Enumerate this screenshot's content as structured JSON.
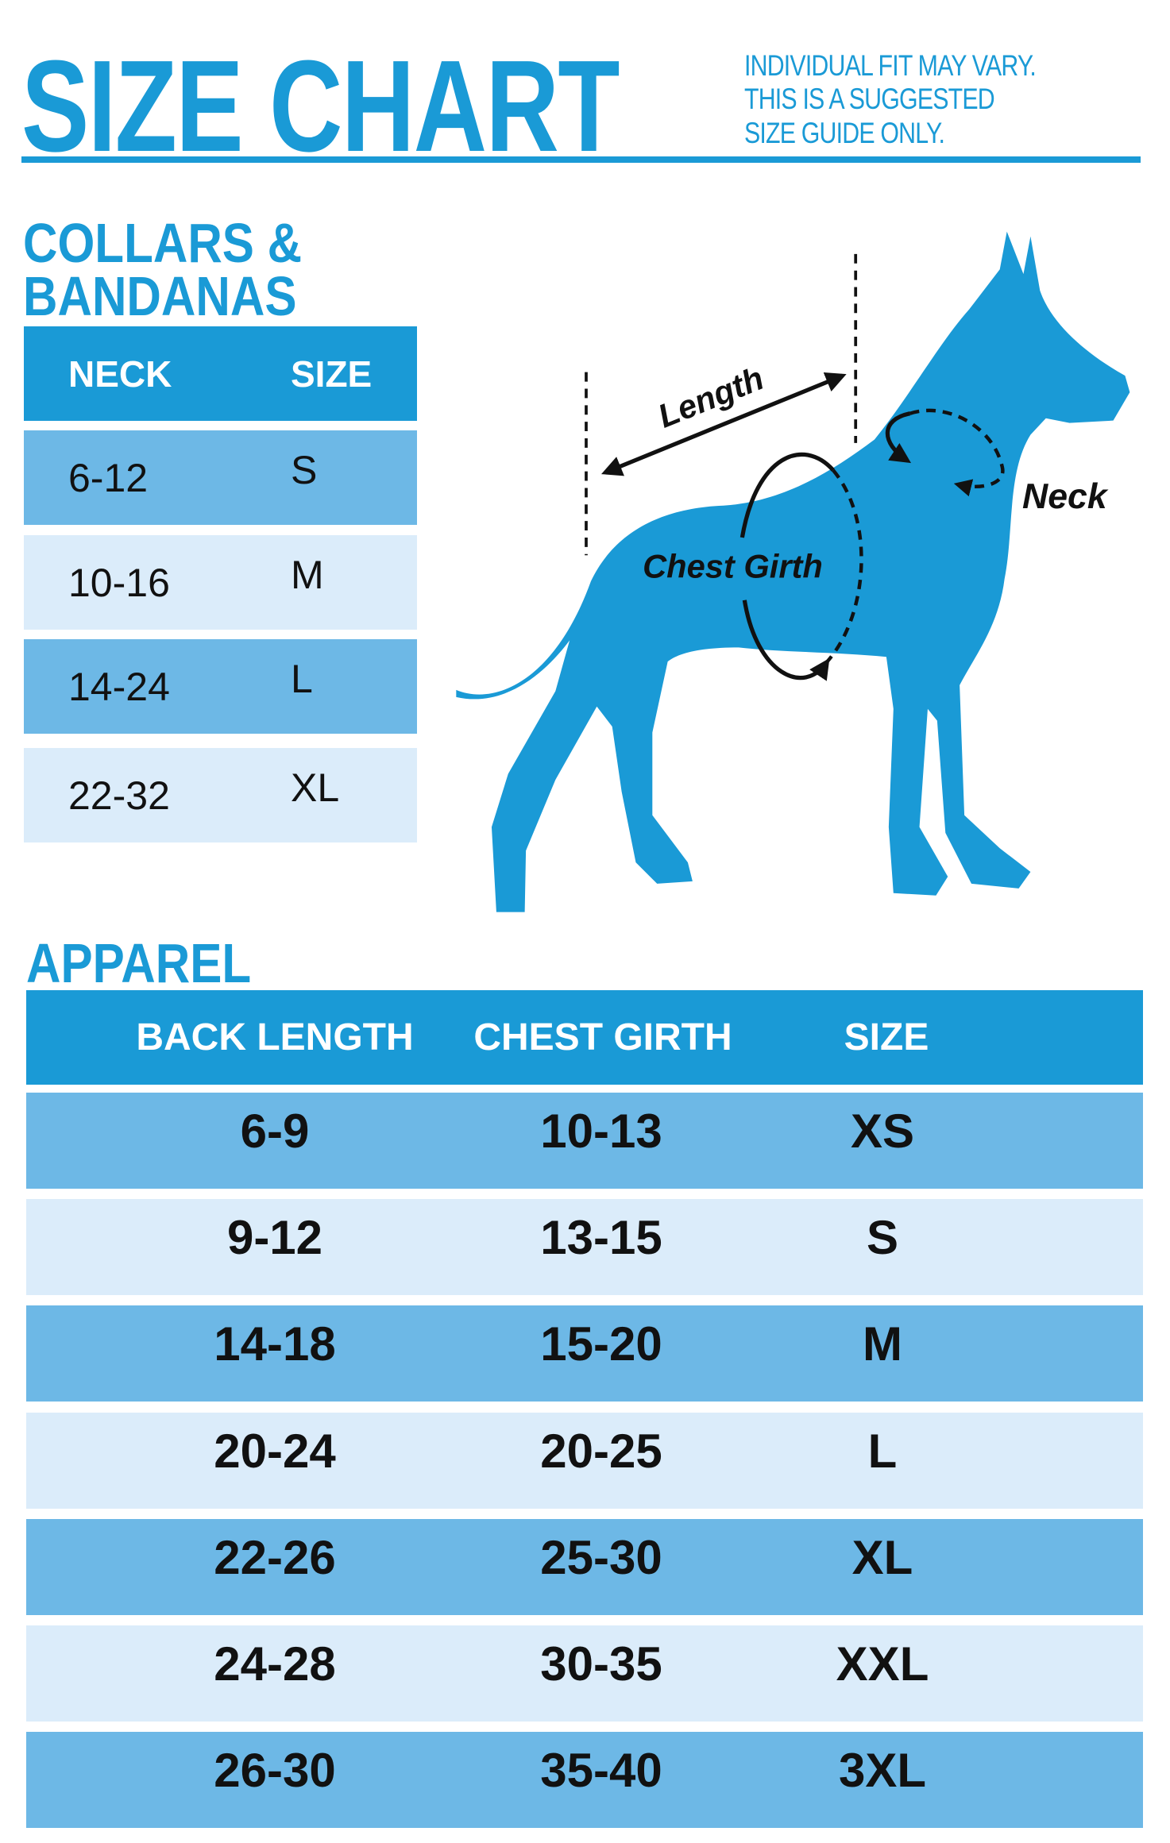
{
  "title": "SIZE CHART",
  "note": [
    "INDIVIDUAL FIT MAY VARY.",
    "THIS IS A SUGGESTED",
    "SIZE GUIDE ONLY."
  ],
  "colors": {
    "accent": "#1a9ad6",
    "row_dark": "#6db8e6",
    "row_light": "#dbecfa",
    "text": "#111111"
  },
  "collars": {
    "heading": [
      "COLLARS &",
      "BANDANAS"
    ],
    "headers": [
      "NECK",
      "SIZE"
    ],
    "rows": [
      [
        "6-12",
        "S"
      ],
      [
        "10-16",
        "M"
      ],
      [
        "14-24",
        "L"
      ],
      [
        "22-32",
        "XL"
      ]
    ]
  },
  "diagram": {
    "icon": "dog-silhouette-icon",
    "labels": {
      "length": "Length",
      "chest": "Chest Girth",
      "neck": "Neck"
    }
  },
  "apparel": {
    "heading": "APPAREL",
    "headers": [
      "BACK LENGTH",
      "CHEST GIRTH",
      "SIZE"
    ],
    "rows": [
      [
        "6-9",
        "10-13",
        "XS"
      ],
      [
        "9-12",
        "13-15",
        "S"
      ],
      [
        "14-18",
        "15-20",
        "M"
      ],
      [
        "20-24",
        "20-25",
        "L"
      ],
      [
        "22-26",
        "25-30",
        "XL"
      ],
      [
        "24-28",
        "30-35",
        "XXL"
      ],
      [
        "26-30",
        "35-40",
        "3XL"
      ]
    ]
  }
}
